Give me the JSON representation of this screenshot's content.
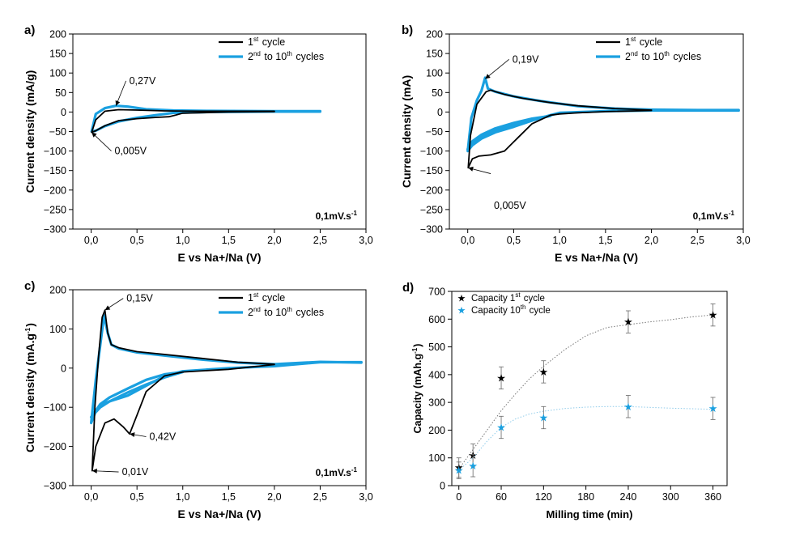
{
  "colors": {
    "first_cycle": "#000000",
    "other_cycles": "#1aa0e0",
    "axis": "#000000"
  },
  "chart_data": [
    {
      "panel": "a)",
      "type": "line",
      "xlabel": "E vs Na+/Na (V)",
      "ylabel": "Current density (mA/g)",
      "xlim": [
        -0.2,
        3.0
      ],
      "ylim": [
        -300,
        200
      ],
      "xticks": [
        0.0,
        0.5,
        1.0,
        1.5,
        2.0,
        2.5,
        3.0
      ],
      "xtick_labels": [
        "0,0",
        "0,5",
        "1,0",
        "1,5",
        "2,0",
        "2,5",
        "3,0"
      ],
      "yticks": [
        -300,
        -250,
        -200,
        -150,
        -100,
        -50,
        0,
        50,
        100,
        150,
        200
      ],
      "ytick_labels": [
        "−300",
        "−250",
        "−200",
        "−150",
        "−100",
        "−50",
        "0",
        "50",
        "100",
        "150",
        "200"
      ],
      "scan_rate": "0,1mV.s",
      "scan_rate_exp": "-1",
      "legend": {
        "position": "top-right",
        "entries": [
          {
            "key": "first",
            "label": "1",
            "sup": "st",
            "tail": " cycle"
          },
          {
            "key": "other",
            "label": "2",
            "sup": "nd",
            "tail": " to 10",
            "sup2": "th",
            "tail2": " cycles"
          }
        ]
      },
      "annotations": [
        {
          "text": "0,27V",
          "x": 0.27,
          "y": 16,
          "tx": 0.38,
          "ty": 80
        },
        {
          "text": "0,005V",
          "x": 0.005,
          "y": -52,
          "tx": 0.22,
          "ty": -100
        }
      ],
      "series": [
        {
          "key": "other",
          "closed": true,
          "widths": [
            1
          ],
          "x": [
            0.005,
            0.05,
            0.15,
            0.27,
            0.4,
            0.6,
            0.9,
            1.3,
            2.0,
            2.5,
            2.5,
            2.0,
            1.3,
            0.9,
            0.7,
            0.5,
            0.3,
            0.15,
            0.05
          ],
          "y": [
            -50,
            -5,
            10,
            16,
            14,
            7,
            4,
            3,
            2,
            2,
            1,
            1,
            0,
            -2,
            -8,
            -15,
            -24,
            -36,
            -48
          ]
        },
        {
          "key": "first",
          "closed": true,
          "widths": [
            1
          ],
          "x": [
            0.005,
            0.05,
            0.15,
            0.3,
            0.5,
            0.8,
            1.2,
            1.6,
            2.0,
            2.0,
            1.5,
            1.0,
            0.92,
            0.85,
            0.7,
            0.5,
            0.3,
            0.15,
            0.05
          ],
          "y": [
            -52,
            -20,
            2,
            6,
            5,
            3,
            2,
            2,
            2,
            1,
            0,
            -3,
            -8,
            -12,
            -14,
            -17,
            -22,
            -35,
            -48
          ]
        }
      ]
    },
    {
      "panel": "b)",
      "type": "line",
      "xlabel": "E vs Na+/Na (V)",
      "ylabel": "Current density (mA)",
      "xlim": [
        -0.2,
        3.0
      ],
      "ylim": [
        -300,
        200
      ],
      "xticks": [
        0.0,
        0.5,
        1.0,
        1.5,
        2.0,
        2.5,
        3.0
      ],
      "xtick_labels": [
        "0,0",
        "0,5",
        "1,0",
        "1,5",
        "2,0",
        "2,5",
        "3,0"
      ],
      "yticks": [
        -300,
        -250,
        -200,
        -150,
        -100,
        -50,
        0,
        50,
        100,
        150,
        200
      ],
      "ytick_labels": [
        "−300",
        "−250",
        "−200",
        "−150",
        "−100",
        "−50",
        "0",
        "50",
        "100",
        "150",
        "200"
      ],
      "scan_rate": "0,1mV.s",
      "scan_rate_exp": "-1",
      "legend": {
        "position": "top-right",
        "entries": [
          {
            "key": "first",
            "label": "1",
            "sup": "st",
            "tail": " cycle"
          },
          {
            "key": "other",
            "label": "2",
            "sup": "nd",
            "tail": " to 10",
            "sup2": "th",
            "tail2": " cycles"
          }
        ]
      },
      "annotations": [
        {
          "text": "0,19V",
          "x": 0.19,
          "y": 85,
          "tx": 0.45,
          "ty": 135
        },
        {
          "text": "0,005V",
          "x": 0.005,
          "y": -143,
          "tx": 0.25,
          "ty": -158,
          "label_x": 0.25,
          "label_y": -240
        }
      ],
      "series": [
        {
          "key": "other",
          "closed": true,
          "widths": [
            1
          ],
          "x": [
            0.0,
            0.04,
            0.1,
            0.15,
            0.19,
            0.22,
            0.3,
            0.5,
            0.8,
            1.2,
            1.6,
            2.0,
            2.5,
            2.95,
            2.95,
            2.0,
            1.5,
            1.0,
            0.9,
            0.7,
            0.5,
            0.3,
            0.15,
            0.05,
            0.0
          ],
          "y": [
            -100,
            -15,
            30,
            55,
            88,
            60,
            52,
            40,
            28,
            15,
            9,
            6,
            5,
            5,
            4,
            4,
            2,
            -2,
            -8,
            -22,
            -38,
            -52,
            -68,
            -85,
            -100
          ]
        },
        {
          "key": "other",
          "closed": true,
          "widths": [
            1
          ],
          "x": [
            0.0,
            0.05,
            0.15,
            0.3,
            0.5,
            0.7,
            0.9,
            0.7,
            0.5,
            0.3,
            0.15,
            0.05,
            0.0
          ],
          "y": [
            -95,
            -80,
            -62,
            -48,
            -32,
            -20,
            -10,
            -17,
            -28,
            -42,
            -58,
            -75,
            -95
          ]
        },
        {
          "key": "first",
          "closed": true,
          "widths": [
            1
          ],
          "x": [
            0.005,
            0.03,
            0.1,
            0.2,
            0.25,
            0.4,
            0.6,
            0.9,
            1.2,
            1.6,
            2.0,
            2.0,
            1.5,
            1.2,
            1.0,
            0.9,
            0.7,
            0.55,
            0.4,
            0.25,
            0.12,
            0.05,
            0.005
          ],
          "y": [
            -143,
            -60,
            20,
            52,
            56,
            45,
            35,
            24,
            16,
            9,
            5,
            4,
            1,
            -2,
            -5,
            -8,
            -30,
            -65,
            -100,
            -110,
            -113,
            -120,
            -143
          ]
        }
      ]
    },
    {
      "panel": "c)",
      "type": "line",
      "xlabel": "E vs Na+/Na (V)",
      "ylabel": "Current density (mA.g",
      "ylabel_sup": "-1",
      "ylabel_tail": ")",
      "xlim": [
        -0.2,
        3.0
      ],
      "ylim": [
        -300,
        200
      ],
      "xticks": [
        0.0,
        0.5,
        1.0,
        1.5,
        2.0,
        2.5,
        3.0
      ],
      "xtick_labels": [
        "0,0",
        "0,5",
        "1,0",
        "1,5",
        "2,0",
        "2,5",
        "3,0"
      ],
      "yticks": [
        -300,
        -200,
        -100,
        0,
        100,
        200
      ],
      "ytick_labels": [
        "−300",
        "−200",
        "−100",
        "0",
        "100",
        "200"
      ],
      "scan_rate": "0,1mV.s",
      "scan_rate_exp": "-1",
      "legend": {
        "position": "top-right",
        "entries": [
          {
            "key": "first",
            "label": "1",
            "sup": "st",
            "tail": " cycle"
          },
          {
            "key": "other",
            "label": "2",
            "sup": "nd",
            "tail": " to 10",
            "sup2": "th",
            "tail2": " cycles"
          }
        ]
      },
      "annotations": [
        {
          "text": "0,15V",
          "x": 0.15,
          "y": 148,
          "tx": 0.35,
          "ty": 178
        },
        {
          "text": "0,42V",
          "x": 0.42,
          "y": -168,
          "tx": 0.6,
          "ty": -175
        },
        {
          "text": "0,01V",
          "x": 0.01,
          "y": -262,
          "tx": 0.3,
          "ty": -265
        }
      ],
      "series": [
        {
          "key": "other",
          "closed": true,
          "widths": [
            1
          ],
          "x": [
            0.0,
            0.05,
            0.1,
            0.14,
            0.18,
            0.22,
            0.3,
            0.5,
            0.8,
            1.2,
            1.6,
            2.0,
            2.5,
            2.95,
            2.95,
            2.5,
            2.0,
            1.5,
            1.0,
            0.8,
            0.6,
            0.4,
            0.2,
            0.1,
            0.05,
            0.0
          ],
          "y": [
            -140,
            -30,
            60,
            135,
            90,
            60,
            50,
            40,
            32,
            22,
            14,
            10,
            16,
            14,
            15,
            15,
            5,
            0,
            -8,
            -20,
            -45,
            -70,
            -85,
            -95,
            -110,
            -140
          ]
        },
        {
          "key": "other",
          "closed": true,
          "widths": [
            1
          ],
          "x": [
            0.0,
            0.1,
            0.2,
            0.4,
            0.6,
            0.8,
            1.0,
            0.8,
            0.6,
            0.4,
            0.2,
            0.1,
            0.0
          ],
          "y": [
            -125,
            -100,
            -85,
            -62,
            -42,
            -24,
            -10,
            -16,
            -30,
            -52,
            -75,
            -92,
            -125
          ]
        },
        {
          "key": "first",
          "closed": true,
          "widths": [
            1
          ],
          "x": [
            0.01,
            0.04,
            0.08,
            0.12,
            0.15,
            0.18,
            0.22,
            0.3,
            0.5,
            0.8,
            1.2,
            1.6,
            2.0,
            2.0,
            1.5,
            1.0,
            0.8,
            0.6,
            0.5,
            0.42,
            0.35,
            0.25,
            0.15,
            0.05,
            0.01
          ],
          "y": [
            -262,
            -100,
            30,
            130,
            148,
            90,
            60,
            52,
            42,
            35,
            25,
            15,
            10,
            9,
            -3,
            -10,
            -20,
            -60,
            -120,
            -168,
            -150,
            -130,
            -140,
            -200,
            -262
          ]
        }
      ]
    },
    {
      "panel": "d)",
      "type": "scatter",
      "xlabel": "Milling time (min)",
      "ylabel": "Capacity (mAh.g",
      "ylabel_sup": "-1",
      "ylabel_tail": ")",
      "xlim": [
        -10,
        380
      ],
      "ylim": [
        0,
        700
      ],
      "xticks": [
        0,
        60,
        120,
        180,
        240,
        300,
        360
      ],
      "xtick_labels": [
        "0",
        "60",
        "120",
        "180",
        "240",
        "300",
        "360"
      ],
      "yticks": [
        0,
        100,
        200,
        300,
        400,
        500,
        600,
        700
      ],
      "ytick_labels": [
        "0",
        "100",
        "200",
        "300",
        "400",
        "500",
        "600",
        "700"
      ],
      "legend": {
        "position": "top-left",
        "entries": [
          {
            "key": "first",
            "label": "Capacity 1",
            "sup": "st",
            "tail": " cycle"
          },
          {
            "key": "other",
            "label": "Capacity 10",
            "sup": "th",
            "tail": " cycle"
          }
        ]
      },
      "series": [
        {
          "key": "first",
          "name": "Capacity 1st cycle",
          "x": [
            0,
            20,
            60,
            120,
            240,
            360
          ],
          "y": [
            65,
            110,
            388,
            410,
            590,
            615
          ],
          "err": [
            35,
            40,
            40,
            40,
            40,
            40
          ],
          "fit_x": [
            0,
            20,
            40,
            60,
            80,
            100,
            120,
            150,
            180,
            210,
            240,
            270,
            300,
            330,
            360
          ],
          "fit_y": [
            60,
            130,
            200,
            270,
            330,
            385,
            430,
            490,
            540,
            570,
            580,
            590,
            598,
            608,
            615
          ]
        },
        {
          "key": "other",
          "name": "Capacity 10th cycle",
          "x": [
            0,
            20,
            60,
            120,
            240,
            360
          ],
          "y": [
            55,
            72,
            210,
            245,
            285,
            278
          ],
          "err": [
            30,
            40,
            40,
            40,
            40,
            40
          ],
          "fit_x": [
            0,
            20,
            40,
            60,
            80,
            100,
            120,
            150,
            180,
            210,
            240,
            270,
            300,
            330,
            360
          ],
          "fit_y": [
            55,
            100,
            160,
            210,
            240,
            258,
            268,
            278,
            283,
            285,
            285,
            282,
            279,
            277,
            275
          ]
        }
      ]
    }
  ]
}
